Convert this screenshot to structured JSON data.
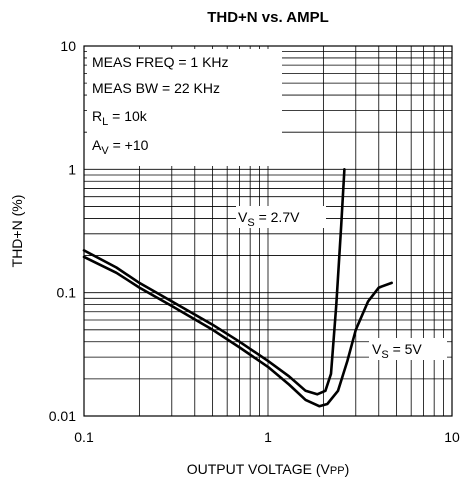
{
  "chart_data": {
    "type": "line",
    "title": "THD+N vs. AMPL",
    "xlabel": "OUTPUT VOLTAGE (V",
    "xlabel_sub": "PP",
    "xlabel_end": ")",
    "ylabel": "THD+N (%)",
    "xscale": "log",
    "yscale": "log",
    "xlim": [
      0.1,
      10
    ],
    "ylim": [
      0.01,
      10
    ],
    "grid": true,
    "x_ticks": [
      {
        "value": 0.1,
        "label": "0.1"
      },
      {
        "value": 1,
        "label": "1"
      },
      {
        "value": 10,
        "label": "10"
      }
    ],
    "y_ticks": [
      {
        "value": 0.01,
        "label": "0.01"
      },
      {
        "value": 0.1,
        "label": "0.1"
      },
      {
        "value": 1,
        "label": "1"
      },
      {
        "value": 10,
        "label": "10"
      }
    ],
    "annotations": [
      {
        "text": "MEAS FREQ = 1 KHz"
      },
      {
        "text": "MEAS BW = 22 KHz"
      },
      {
        "main": "R",
        "sub": "L",
        "rest": " = 10k"
      },
      {
        "main": "A",
        "sub": "V",
        "rest": " = +10"
      }
    ],
    "series": [
      {
        "label_main": "V",
        "label_sub": "S",
        "label_rest": " = 2.7V",
        "x": [
          0.1,
          0.15,
          0.2,
          0.3,
          0.5,
          0.7,
          1.0,
          1.3,
          1.6,
          1.85,
          2.05,
          2.2,
          2.35,
          2.5,
          2.6
        ],
        "y": [
          0.22,
          0.16,
          0.12,
          0.085,
          0.055,
          0.04,
          0.028,
          0.021,
          0.016,
          0.015,
          0.016,
          0.022,
          0.08,
          0.35,
          1.0
        ]
      },
      {
        "label_main": "V",
        "label_sub": "S",
        "label_rest": " = 5V",
        "x": [
          0.1,
          0.15,
          0.2,
          0.3,
          0.5,
          0.7,
          1.0,
          1.3,
          1.6,
          1.9,
          2.1,
          2.4,
          2.7,
          3.0,
          3.5,
          4.0,
          4.7
        ],
        "y": [
          0.195,
          0.145,
          0.11,
          0.078,
          0.05,
          0.036,
          0.025,
          0.018,
          0.0135,
          0.012,
          0.0125,
          0.016,
          0.028,
          0.05,
          0.085,
          0.11,
          0.12
        ]
      }
    ]
  }
}
